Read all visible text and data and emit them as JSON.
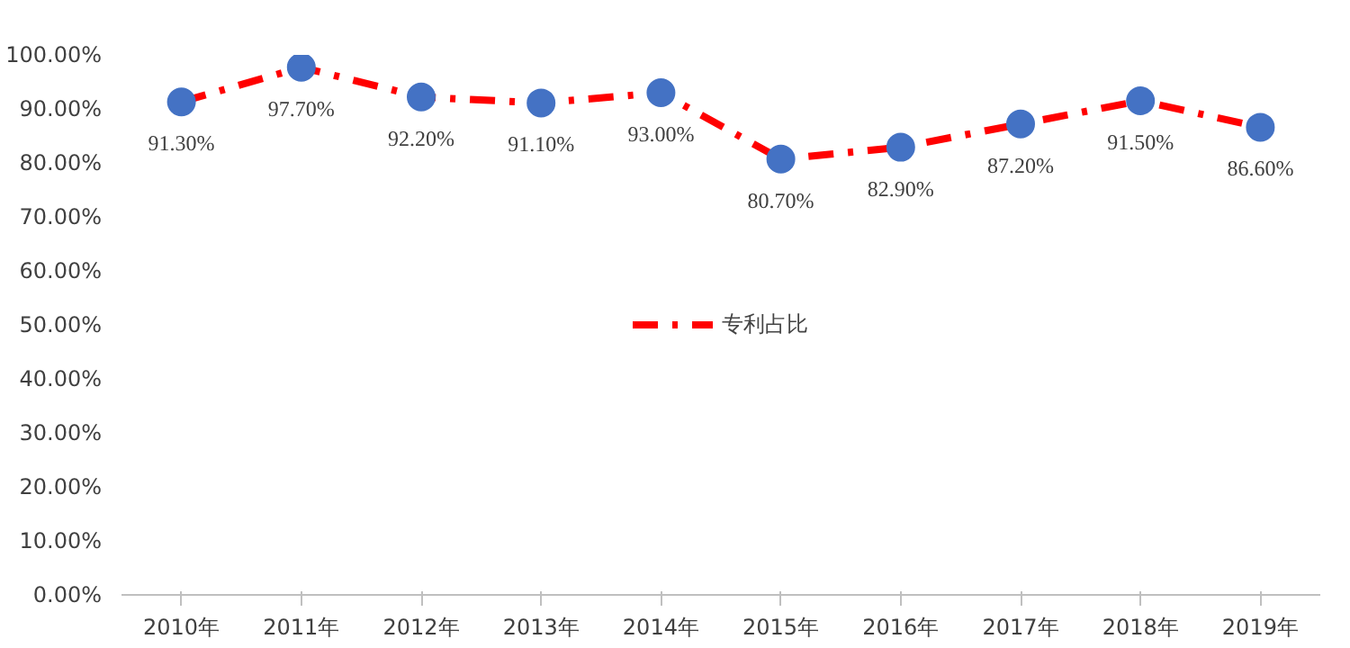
{
  "chart_data": {
    "type": "line",
    "categories": [
      "2010年",
      "2011年",
      "2012年",
      "2013年",
      "2014年",
      "2015年",
      "2016年",
      "2017年",
      "2018年",
      "2019年"
    ],
    "series": [
      {
        "name": "专利占比",
        "color": "#ff0000",
        "colors": [
          "#4472c4",
          "#4472c4",
          "#4472c4",
          "#4472c4",
          "#4472c4",
          "#4472c4",
          "#4472c4",
          "#4472c4",
          "#4472c4",
          "#4472c4"
        ],
        "values": [
          91.3,
          97.7,
          92.2,
          91.1,
          93.0,
          80.7,
          82.9,
          87.2,
          91.5,
          86.6
        ],
        "value_labels": [
          "91.30%",
          "97.70%",
          "92.20%",
          "91.10%",
          "93.00%",
          "80.70%",
          "82.90%",
          "87.20%",
          "91.50%",
          "86.60%"
        ]
      }
    ],
    "ylim": [
      0,
      100
    ],
    "yticks": [
      {
        "value": 0,
        "label": "0.00%"
      },
      {
        "value": 10,
        "label": "10.00%"
      },
      {
        "value": 20,
        "label": "20.00%"
      },
      {
        "value": 30,
        "label": "30.00%"
      },
      {
        "value": 40,
        "label": "40.00%"
      },
      {
        "value": 50,
        "label": "50.00%"
      },
      {
        "value": 60,
        "label": "60.00%"
      },
      {
        "value": 70,
        "label": "70.00%"
      },
      {
        "value": 80,
        "label": "80.00%"
      },
      {
        "value": 90,
        "label": "90.00%"
      },
      {
        "value": 100,
        "label": "100.00%"
      }
    ],
    "grid": false,
    "legend": "center",
    "marker": "circle",
    "line_style": "dashed"
  }
}
